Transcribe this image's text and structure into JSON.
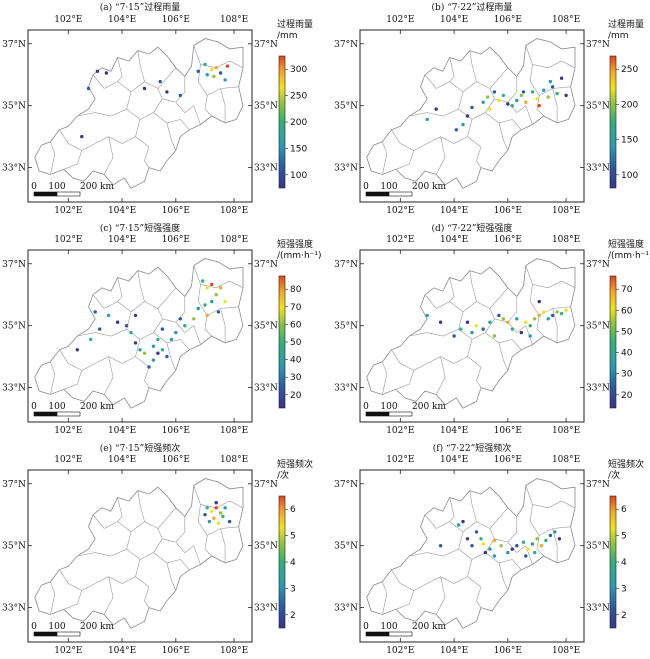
{
  "scale_bar": {
    "zero": "0",
    "mid": "100",
    "end": "200 km"
  },
  "panels": [
    {
      "title": "(a) “7·15”过程雨量",
      "cb_label1": "过程雨量",
      "cb_label2": "/mm",
      "cb_ticks": [
        "300",
        "250",
        "200",
        "150",
        "100"
      ],
      "lon_ticks": [
        "102°E",
        "104°E",
        "106°E",
        "108°E"
      ],
      "lat_ticks": [
        "37°N",
        "35°N",
        "33°N"
      ]
    },
    {
      "title": "(b) “7·22”过程雨量",
      "cb_label1": "过程雨量",
      "cb_label2": "/mm",
      "cb_ticks": [
        "250",
        "200",
        "150",
        "100"
      ],
      "lon_ticks": [
        "102°E",
        "104°E",
        "106°E",
        "108°E"
      ],
      "lat_ticks": [
        "37°N",
        "35°N",
        "33°N"
      ]
    },
    {
      "title": "(c) “7·15”短强强度",
      "cb_label1": "短强强度",
      "cb_label2": "/(mm·h⁻¹)",
      "cb_ticks": [
        "80",
        "70",
        "60",
        "50",
        "40",
        "30",
        "20"
      ],
      "lon_ticks": [
        "102°E",
        "104°E",
        "106°E",
        "108°E"
      ],
      "lat_ticks": [
        "37°N",
        "35°N",
        "33°N"
      ]
    },
    {
      "title": "(d) “7·22”短强强度",
      "cb_label1": "短强强度",
      "cb_label2": "/(mm·h⁻¹)",
      "cb_ticks": [
        "70",
        "60",
        "50",
        "40",
        "30",
        "20"
      ],
      "lon_ticks": [
        "102°E",
        "104°E",
        "106°E",
        "108°E"
      ],
      "lat_ticks": [
        "37°N",
        "35°N",
        "33°N"
      ]
    },
    {
      "title": "(e) “7·15”短强频次",
      "cb_label1": "短强频次",
      "cb_label2": "/次",
      "cb_ticks": [
        "6",
        "5",
        "4",
        "3",
        "2"
      ],
      "lon_ticks": [
        "102°E",
        "104°E",
        "106°E",
        "108°E"
      ],
      "lat_ticks": [
        "37°N",
        "35°N",
        "33°N"
      ]
    },
    {
      "title": "(f) “7·22”短强频次",
      "cb_label1": "短强频次",
      "cb_label2": "/次",
      "cb_ticks": [
        "6",
        "5",
        "4",
        "3",
        "2"
      ],
      "lon_ticks": [
        "102°E",
        "104°E",
        "106°E",
        "108°E"
      ],
      "lat_ticks": [
        "37°N",
        "35°N",
        "33°N"
      ]
    }
  ],
  "colors": [
    "#3b3487",
    "#2a5aa6",
    "#2b9bb0",
    "#33b07a",
    "#8cc63e",
    "#f2e21c",
    "#f5a623",
    "#e2461e"
  ]
}
